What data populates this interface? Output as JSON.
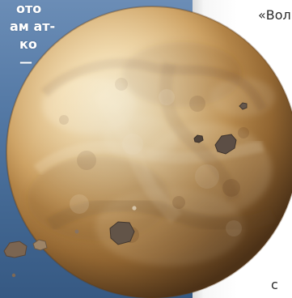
{
  "left_text": {
    "line_1": "ото",
    "line_2": "ам ат-",
    "line_3": "ко",
    "line_4": "—"
  },
  "right_text": {
    "top": "«Вол",
    "bottom": "с"
  },
  "planet": {
    "name": "planet"
  }
}
